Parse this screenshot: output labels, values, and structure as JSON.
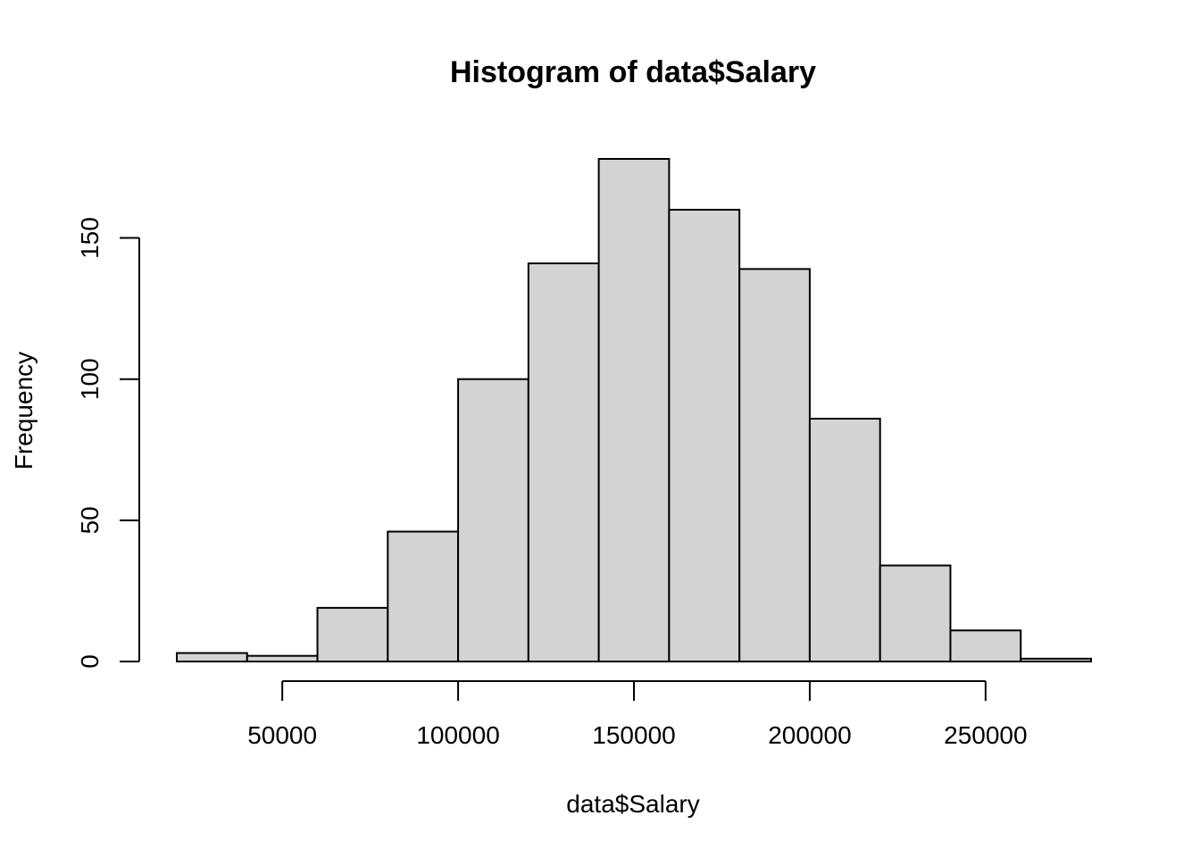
{
  "chart_data": {
    "type": "bar",
    "title": "Histogram of data$Salary",
    "xlabel": "data$Salary",
    "ylabel": "Frequency",
    "bins": [
      {
        "start": 20000,
        "end": 40000,
        "count": 3
      },
      {
        "start": 40000,
        "end": 60000,
        "count": 2
      },
      {
        "start": 60000,
        "end": 80000,
        "count": 19
      },
      {
        "start": 80000,
        "end": 100000,
        "count": 46
      },
      {
        "start": 100000,
        "end": 120000,
        "count": 100
      },
      {
        "start": 120000,
        "end": 140000,
        "count": 141
      },
      {
        "start": 140000,
        "end": 160000,
        "count": 178
      },
      {
        "start": 160000,
        "end": 180000,
        "count": 160
      },
      {
        "start": 180000,
        "end": 200000,
        "count": 139
      },
      {
        "start": 200000,
        "end": 220000,
        "count": 86
      },
      {
        "start": 220000,
        "end": 240000,
        "count": 34
      },
      {
        "start": 240000,
        "end": 260000,
        "count": 11
      },
      {
        "start": 260000,
        "end": 280000,
        "count": 1
      }
    ],
    "xlim": [
      20000,
      280000
    ],
    "ylim": [
      0,
      178
    ],
    "xticks": [
      50000,
      100000,
      150000,
      200000,
      250000
    ],
    "xtick_labels": [
      "50000",
      "100000",
      "150000",
      "200000",
      "250000"
    ],
    "yticks": [
      0,
      50,
      100,
      150
    ],
    "ytick_labels": [
      "0",
      "50",
      "100",
      "150"
    ],
    "grid": false,
    "bar_color": "#d3d3d3",
    "edge_color": "#000000"
  }
}
